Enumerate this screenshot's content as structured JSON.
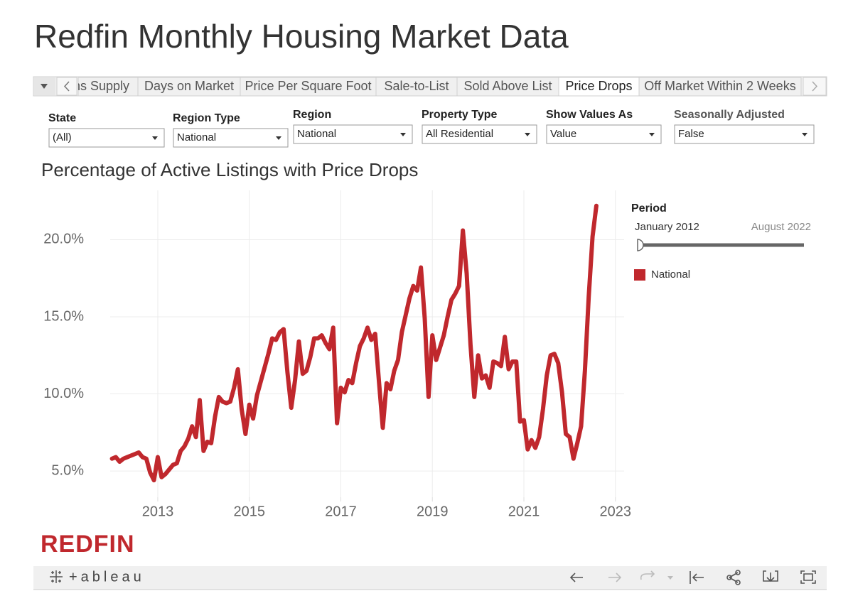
{
  "header": {
    "title": "Redfin Monthly Housing Market Data"
  },
  "tabs": {
    "items": [
      "Months Supply",
      "Days on Market",
      "Price Per Square Foot",
      "Sale-to-List",
      "Sold Above List",
      "Price Drops",
      "Off Market Within 2 Weeks"
    ],
    "active": 5
  },
  "filters": [
    {
      "label": "State",
      "value": "(All)"
    },
    {
      "label": "Region Type",
      "value": "National"
    },
    {
      "label": "Region",
      "value": "National"
    },
    {
      "label": "Property Type",
      "value": "All Residential"
    },
    {
      "label": "Show Values As",
      "value": "Value"
    },
    {
      "label": "Seasonally Adjusted",
      "value": "False"
    }
  ],
  "period_filter": {
    "label": "Period",
    "start": "January 2012",
    "end": "August 2022"
  },
  "brand": {
    "logo": "REDFIN",
    "footer": "+ableau"
  },
  "chart_data": {
    "type": "line",
    "title": "Percentage of Active Listings with Price Drops",
    "x": [
      "2012-01",
      "2012-02",
      "2012-03",
      "2012-04",
      "2012-05",
      "2012-06",
      "2012-07",
      "2012-08",
      "2012-09",
      "2012-10",
      "2012-11",
      "2012-12",
      "2013-01",
      "2013-02",
      "2013-03",
      "2013-04",
      "2013-05",
      "2013-06",
      "2013-07",
      "2013-08",
      "2013-09",
      "2013-10",
      "2013-11",
      "2013-12",
      "2014-01",
      "2014-02",
      "2014-03",
      "2014-04",
      "2014-05",
      "2014-06",
      "2014-07",
      "2014-08",
      "2014-09",
      "2014-10",
      "2014-11",
      "2014-12",
      "2015-01",
      "2015-02",
      "2015-03",
      "2015-04",
      "2015-05",
      "2015-06",
      "2015-07",
      "2015-08",
      "2015-09",
      "2015-10",
      "2015-11",
      "2015-12",
      "2016-01",
      "2016-02",
      "2016-03",
      "2016-04",
      "2016-05",
      "2016-06",
      "2016-07",
      "2016-08",
      "2016-09",
      "2016-10",
      "2016-11",
      "2016-12",
      "2017-01",
      "2017-02",
      "2017-03",
      "2017-04",
      "2017-05",
      "2017-06",
      "2017-07",
      "2017-08",
      "2017-09",
      "2017-10",
      "2017-11",
      "2017-12",
      "2018-01",
      "2018-02",
      "2018-03",
      "2018-04",
      "2018-05",
      "2018-06",
      "2018-07",
      "2018-08",
      "2018-09",
      "2018-10",
      "2018-11",
      "2018-12",
      "2019-01",
      "2019-02",
      "2019-03",
      "2019-04",
      "2019-05",
      "2019-06",
      "2019-07",
      "2019-08",
      "2019-09",
      "2019-10",
      "2019-11",
      "2019-12",
      "2020-01",
      "2020-02",
      "2020-03",
      "2020-04",
      "2020-05",
      "2020-06",
      "2020-07",
      "2020-08",
      "2020-09",
      "2020-10",
      "2020-11",
      "2020-12",
      "2021-01",
      "2021-02",
      "2021-03",
      "2021-04",
      "2021-05",
      "2021-06",
      "2021-07",
      "2021-08",
      "2021-09",
      "2021-10",
      "2021-11",
      "2021-12",
      "2022-01",
      "2022-02",
      "2022-03",
      "2022-04",
      "2022-05",
      "2022-06",
      "2022-07",
      "2022-08"
    ],
    "series": [
      {
        "name": "National",
        "color": "#c0282d",
        "values": [
          5.8,
          5.9,
          5.6,
          5.8,
          5.9,
          6.0,
          6.1,
          6.2,
          5.9,
          5.8,
          4.9,
          4.4,
          5.9,
          4.6,
          4.8,
          5.1,
          5.4,
          5.5,
          6.3,
          6.6,
          7.1,
          7.9,
          7.2,
          9.6,
          6.3,
          6.9,
          6.8,
          8.5,
          9.8,
          9.5,
          9.4,
          9.5,
          10.4,
          11.6,
          9.0,
          7.4,
          9.3,
          8.4,
          9.9,
          10.8,
          11.7,
          12.6,
          13.6,
          13.5,
          14.0,
          14.2,
          11.4,
          9.1,
          10.9,
          13.4,
          11.3,
          11.5,
          12.4,
          13.6,
          13.6,
          13.8,
          13.3,
          12.9,
          14.3,
          8.1,
          10.4,
          10.1,
          10.9,
          10.7,
          12.0,
          13.1,
          13.6,
          14.3,
          13.5,
          13.9,
          10.8,
          7.8,
          10.7,
          10.3,
          11.5,
          12.2,
          14.0,
          15.1,
          16.2,
          17.0,
          16.7,
          18.2,
          14.9,
          9.8,
          13.8,
          12.2,
          13.0,
          13.8,
          15.0,
          16.1,
          16.5,
          17.0,
          20.6,
          17.8,
          13.2,
          9.8,
          12.5,
          11.0,
          11.2,
          10.4,
          12.1,
          12.0,
          11.8,
          13.7,
          11.6,
          12.1,
          12.1,
          8.2,
          8.3,
          6.4,
          7.0,
          6.5,
          7.2,
          9.0,
          11.2,
          12.5,
          12.6,
          12.0,
          10.1,
          7.4,
          7.2,
          5.8,
          6.8,
          7.9,
          11.5,
          16.3,
          20.2,
          22.2
        ]
      }
    ],
    "xlim": [
      2011.96,
      2023.19
    ],
    "xticks": [
      2013,
      2015,
      2017,
      2019,
      2021,
      2023
    ],
    "ylim": [
      3.3,
      23.2
    ],
    "yticks": [
      {
        "value": 5,
        "label": "5.0%"
      },
      {
        "value": 10,
        "label": "10.0%"
      },
      {
        "value": 15,
        "label": "15.0%"
      },
      {
        "value": 20,
        "label": "20.0%"
      }
    ],
    "grid": true
  }
}
